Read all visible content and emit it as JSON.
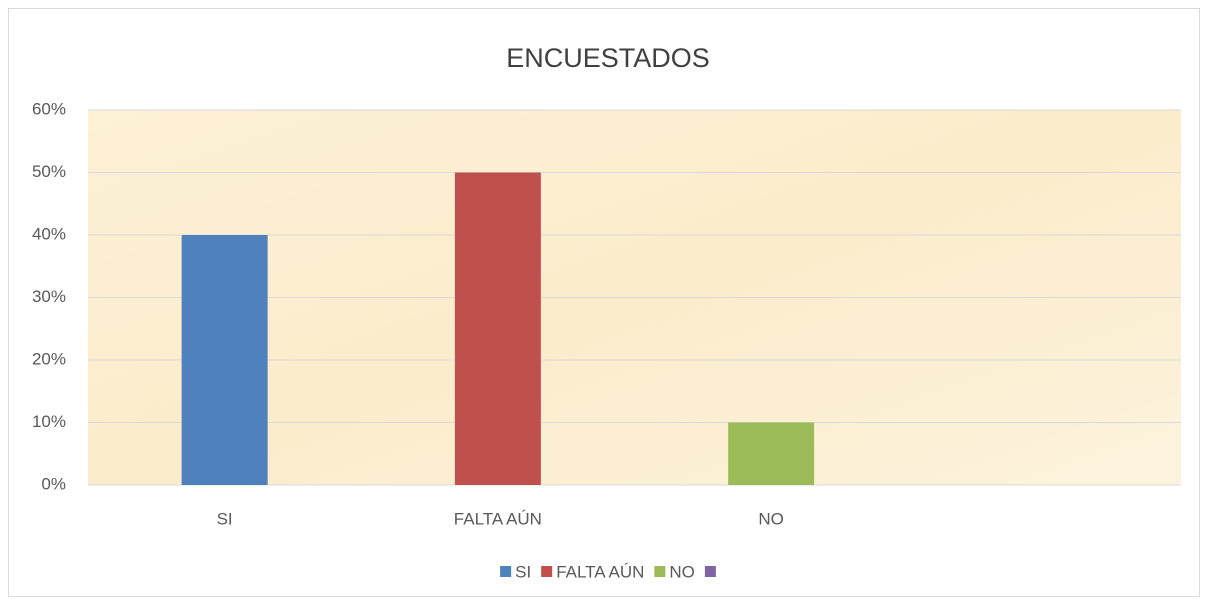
{
  "chart_data": {
    "type": "bar",
    "title": "ENCUESTADOS",
    "categories": [
      "SI",
      "FALTA AÚN",
      "NO",
      null
    ],
    "values": [
      40,
      50,
      10,
      null
    ],
    "colors": [
      "#4f81bd",
      "#c0504d",
      "#9bbb59",
      "#8064a2"
    ],
    "ylim": [
      0,
      60
    ],
    "yticks": [
      {
        "value": 0,
        "label": "0%"
      },
      {
        "value": 10,
        "label": "10%"
      },
      {
        "value": 20,
        "label": "20%"
      },
      {
        "value": 30,
        "label": "30%"
      },
      {
        "value": 40,
        "label": "40%"
      },
      {
        "value": 50,
        "label": "50%"
      },
      {
        "value": 60,
        "label": "60%"
      }
    ],
    "grid": true,
    "legend": "bottom"
  }
}
